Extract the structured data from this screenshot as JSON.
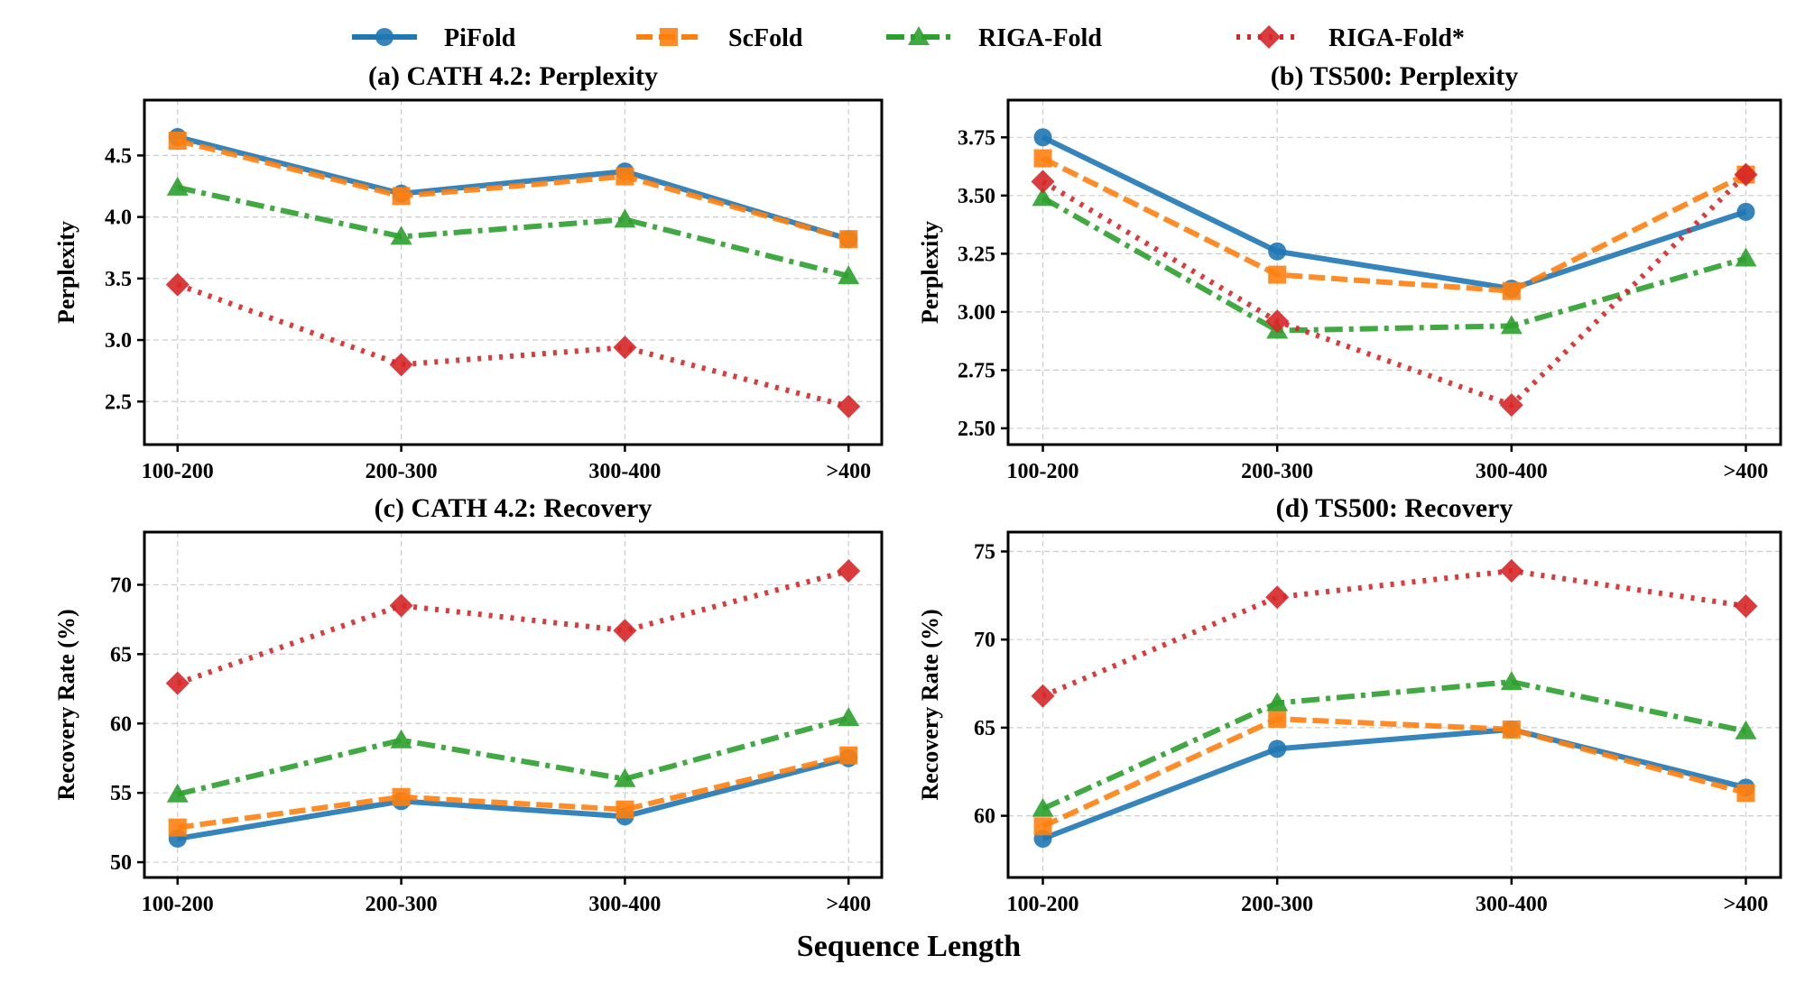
{
  "figure": {
    "xlabel": "Sequence Length"
  },
  "legend": [
    {
      "name": "PiFold",
      "color": "#1f77b4",
      "marker": "circle",
      "dash": "solid"
    },
    {
      "name": "ScFold",
      "color": "#ff7f0e",
      "marker": "square",
      "dash": "dashed"
    },
    {
      "name": "RIGA-Fold",
      "color": "#2ca02c",
      "marker": "triangle",
      "dash": "dashdot"
    },
    {
      "name": "RIGA-Fold*",
      "color": "#d62728",
      "marker": "diamond",
      "dash": "dotted"
    }
  ],
  "chart_data": [
    {
      "type": "line",
      "title": "(a) CATH 4.2: Perplexity",
      "xlabel": "",
      "ylabel": "Perplexity",
      "categories": [
        "100-200",
        "200-300",
        "300-400",
        ">400"
      ],
      "ylim": [
        2.15,
        4.95
      ],
      "yticks": [
        2.5,
        3.0,
        3.5,
        4.0,
        4.5
      ],
      "ytick_labels": [
        "2.5",
        "3.0",
        "3.5",
        "4.0",
        "4.5"
      ],
      "grid": true,
      "series": [
        {
          "name": "PiFold",
          "values": [
            4.65,
            4.19,
            4.37,
            3.82
          ]
        },
        {
          "name": "ScFold",
          "values": [
            4.62,
            4.17,
            4.33,
            3.82
          ]
        },
        {
          "name": "RIGA-Fold",
          "values": [
            4.24,
            3.84,
            3.98,
            3.52
          ]
        },
        {
          "name": "RIGA-Fold*",
          "values": [
            3.45,
            2.8,
            2.94,
            2.46
          ]
        }
      ]
    },
    {
      "type": "line",
      "title": "(b) TS500: Perplexity",
      "xlabel": "",
      "ylabel": "Perplexity",
      "categories": [
        "100-200",
        "200-300",
        "300-400",
        ">400"
      ],
      "ylim": [
        2.43,
        3.91
      ],
      "yticks": [
        2.5,
        2.75,
        3.0,
        3.25,
        3.5,
        3.75
      ],
      "ytick_labels": [
        "2.50",
        "2.75",
        "3.00",
        "3.25",
        "3.50",
        "3.75"
      ],
      "grid": true,
      "series": [
        {
          "name": "PiFold",
          "values": [
            3.75,
            3.26,
            3.1,
            3.43
          ]
        },
        {
          "name": "ScFold",
          "values": [
            3.66,
            3.16,
            3.09,
            3.59
          ]
        },
        {
          "name": "RIGA-Fold",
          "values": [
            3.49,
            2.92,
            2.94,
            3.23
          ]
        },
        {
          "name": "RIGA-Fold*",
          "values": [
            3.56,
            2.96,
            2.6,
            3.59
          ]
        }
      ]
    },
    {
      "type": "line",
      "title": "(c) CATH 4.2: Recovery",
      "xlabel": "",
      "ylabel": "Recovery Rate (%)",
      "categories": [
        "100-200",
        "200-300",
        "300-400",
        ">400"
      ],
      "ylim": [
        48.9,
        73.8
      ],
      "yticks": [
        50,
        55,
        60,
        65,
        70
      ],
      "ytick_labels": [
        "50",
        "55",
        "60",
        "65",
        "70"
      ],
      "grid": true,
      "series": [
        {
          "name": "PiFold",
          "values": [
            51.7,
            54.4,
            53.3,
            57.5
          ]
        },
        {
          "name": "ScFold",
          "values": [
            52.5,
            54.7,
            53.8,
            57.7
          ]
        },
        {
          "name": "RIGA-Fold",
          "values": [
            54.9,
            58.8,
            56.0,
            60.4
          ]
        },
        {
          "name": "RIGA-Fold*",
          "values": [
            62.9,
            68.5,
            66.7,
            71.0
          ]
        }
      ]
    },
    {
      "type": "line",
      "title": "(d) TS500: Recovery",
      "xlabel": "",
      "ylabel": "Recovery Rate (%)",
      "categories": [
        "100-200",
        "200-300",
        "300-400",
        ">400"
      ],
      "ylim": [
        56.5,
        76.1
      ],
      "yticks": [
        60,
        65,
        70,
        75
      ],
      "ytick_labels": [
        "60",
        "65",
        "70",
        "75"
      ],
      "grid": true,
      "series": [
        {
          "name": "PiFold",
          "values": [
            58.7,
            63.8,
            64.9,
            61.6
          ]
        },
        {
          "name": "ScFold",
          "values": [
            59.4,
            65.5,
            64.9,
            61.3
          ]
        },
        {
          "name": "RIGA-Fold",
          "values": [
            60.4,
            66.4,
            67.6,
            64.8
          ]
        },
        {
          "name": "RIGA-Fold*",
          "values": [
            66.8,
            72.4,
            73.9,
            71.9
          ]
        }
      ]
    }
  ]
}
